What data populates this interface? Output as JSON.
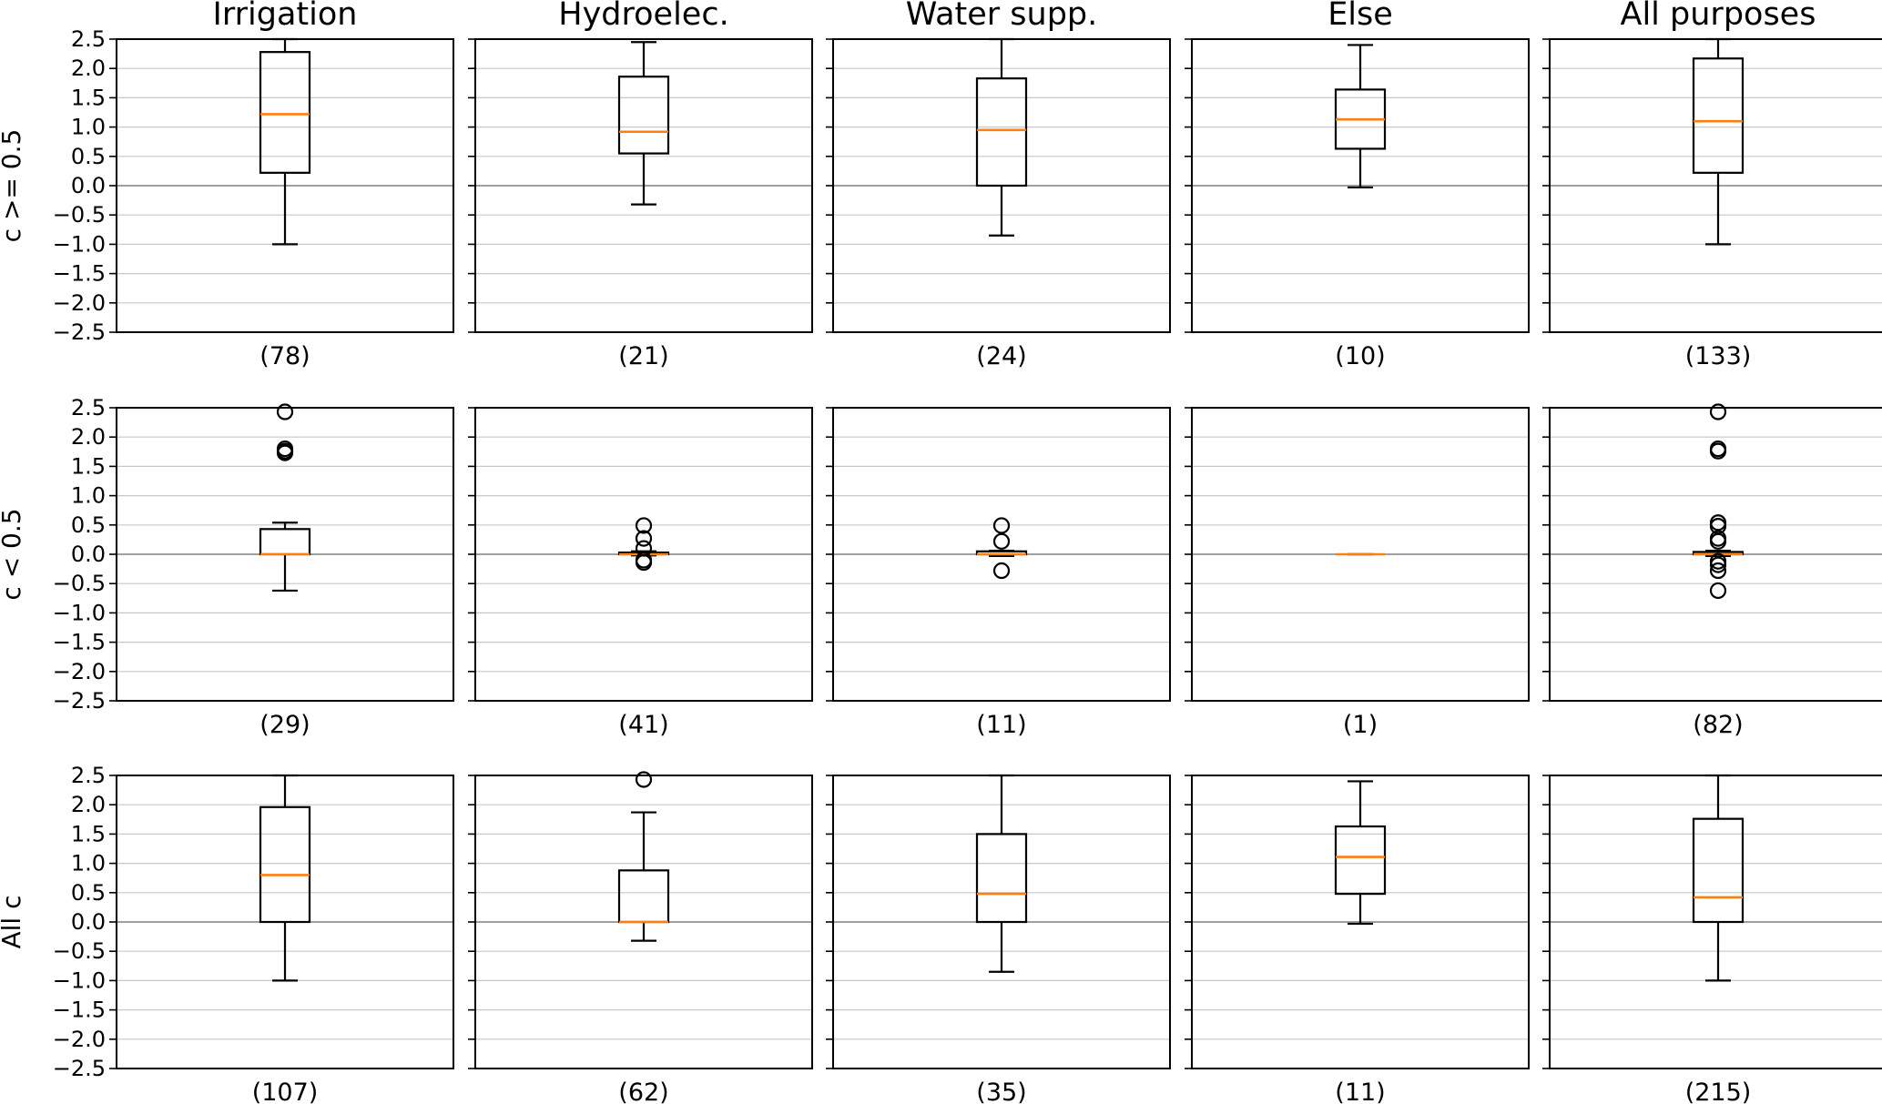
{
  "chart_data": {
    "type": "box",
    "ylim": [
      -2.5,
      2.5
    ],
    "yticks": [
      "2.5",
      "2.0",
      "1.5",
      "1.0",
      "0.5",
      "0.0",
      "−0.5",
      "−1.0",
      "−1.5",
      "−2.0",
      "−2.5"
    ],
    "ytick_values": [
      2.5,
      2.0,
      1.5,
      1.0,
      0.5,
      0.0,
      -0.5,
      -1.0,
      -1.5,
      -2.0,
      -2.5
    ],
    "grid": "horizontal",
    "column_titles": [
      "Irrigation",
      "Hydroelec.",
      "Water supp.",
      "Else",
      "All purposes"
    ],
    "row_labels": [
      "c >= 0.5",
      "c < 0.5",
      "All c"
    ],
    "colors": {
      "median": "#ff7f0e",
      "box": "#000000",
      "grid": "#c8c8c8",
      "zero_line": "#808080"
    },
    "panels": [
      [
        {
          "count": "(78)",
          "whisker_low": -1.0,
          "q1": 0.22,
          "median": 1.22,
          "q3": 2.28,
          "whisker_high": 2.5,
          "fliers": []
        },
        {
          "count": "(21)",
          "whisker_low": -0.32,
          "q1": 0.55,
          "median": 0.92,
          "q3": 1.86,
          "whisker_high": 2.45,
          "fliers": []
        },
        {
          "count": "(24)",
          "whisker_low": -0.85,
          "q1": 0.0,
          "median": 0.95,
          "q3": 1.83,
          "whisker_high": 2.5,
          "fliers": []
        },
        {
          "count": "(10)",
          "whisker_low": -0.03,
          "q1": 0.63,
          "median": 1.13,
          "q3": 1.64,
          "whisker_high": 2.4,
          "fliers": []
        },
        {
          "count": "(133)",
          "whisker_low": -1.0,
          "q1": 0.22,
          "median": 1.1,
          "q3": 2.17,
          "whisker_high": 2.5,
          "fliers": []
        }
      ],
      [
        {
          "count": "(29)",
          "whisker_low": -0.62,
          "q1": 0.0,
          "median": 0.0,
          "q3": 0.43,
          "whisker_high": 0.54,
          "fliers": [
            2.43,
            1.8,
            1.76,
            1.73
          ]
        },
        {
          "count": "(41)",
          "whisker_low": -0.02,
          "q1": 0.0,
          "median": 0.0,
          "q3": 0.03,
          "whisker_high": 0.05,
          "fliers": [
            0.49,
            0.27,
            0.1,
            -0.1,
            -0.14
          ]
        },
        {
          "count": "(11)",
          "whisker_low": -0.03,
          "q1": 0.0,
          "median": 0.0,
          "q3": 0.05,
          "whisker_high": 0.06,
          "fliers": [
            0.49,
            0.22,
            -0.28
          ]
        },
        {
          "count": "(1)",
          "whisker_low": 0.0,
          "q1": 0.0,
          "median": 0.0,
          "q3": 0.0,
          "whisker_high": 0.0,
          "fliers": []
        },
        {
          "count": "(82)",
          "whisker_low": -0.03,
          "q1": 0.0,
          "median": 0.0,
          "q3": 0.04,
          "whisker_high": 0.06,
          "fliers": [
            2.43,
            1.8,
            1.76,
            0.54,
            0.48,
            0.27,
            0.22,
            -0.12,
            -0.18,
            -0.28,
            -0.62
          ]
        }
      ],
      [
        {
          "count": "(107)",
          "whisker_low": -1.0,
          "q1": 0.0,
          "median": 0.8,
          "q3": 1.96,
          "whisker_high": 2.5,
          "fliers": []
        },
        {
          "count": "(62)",
          "whisker_low": -0.32,
          "q1": 0.0,
          "median": 0.0,
          "q3": 0.88,
          "whisker_high": 1.87,
          "fliers": [
            2.43
          ]
        },
        {
          "count": "(35)",
          "whisker_low": -0.85,
          "q1": 0.0,
          "median": 0.48,
          "q3": 1.5,
          "whisker_high": 2.5,
          "fliers": []
        },
        {
          "count": "(11)",
          "whisker_low": -0.03,
          "q1": 0.48,
          "median": 1.11,
          "q3": 1.63,
          "whisker_high": 2.4,
          "fliers": []
        },
        {
          "count": "(215)",
          "whisker_low": -1.0,
          "q1": 0.0,
          "median": 0.42,
          "q3": 1.76,
          "whisker_high": 2.5,
          "fliers": []
        }
      ]
    ]
  }
}
